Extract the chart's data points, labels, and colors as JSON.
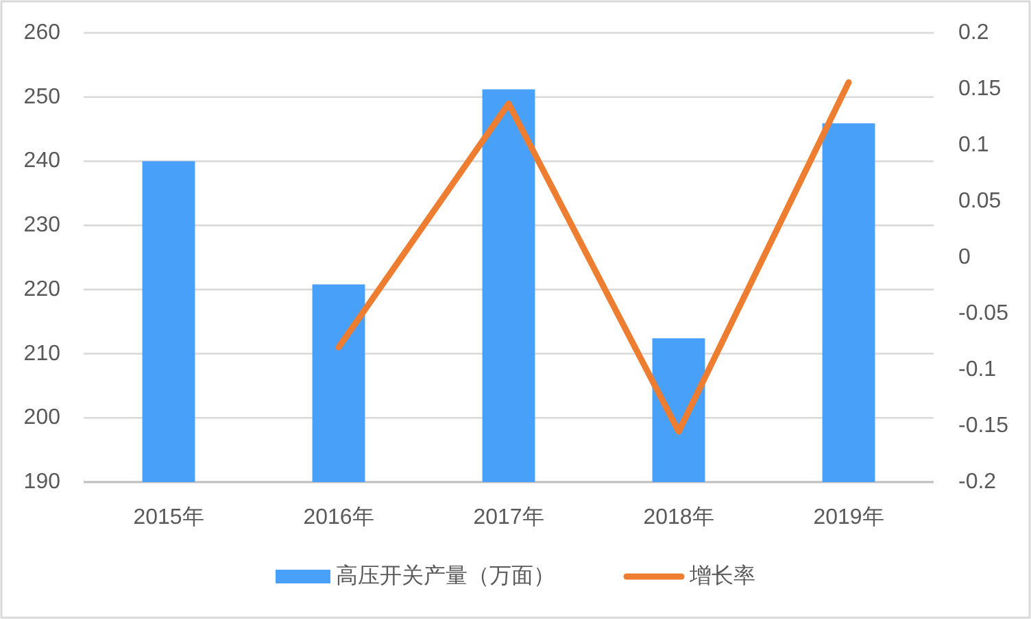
{
  "chart_data": {
    "type": "bar",
    "categories": [
      "2015年",
      "2016年",
      "2017年",
      "2018年",
      "2019年"
    ],
    "series": [
      {
        "name": "高压开关产量（万面）",
        "color": "#49a0f9",
        "values": [
          240,
          220.8,
          251.2,
          212.4,
          245.9
        ]
      },
      {
        "name": "增长率",
        "type": "line",
        "axis": "y2",
        "color": "#ed7d31",
        "values": [
          null,
          -0.08,
          0.137,
          -0.155,
          0.156
        ]
      }
    ],
    "ylim": [
      190,
      260
    ],
    "yticks": [
      190,
      200,
      210,
      220,
      230,
      240,
      250,
      260
    ],
    "y2lim": [
      -0.2,
      0.2
    ],
    "y2ticks": [
      -0.2,
      -0.15,
      -0.1,
      -0.05,
      0,
      0.05,
      0.1,
      0.15,
      0.2
    ],
    "grid": "y",
    "legend": "bottom"
  }
}
